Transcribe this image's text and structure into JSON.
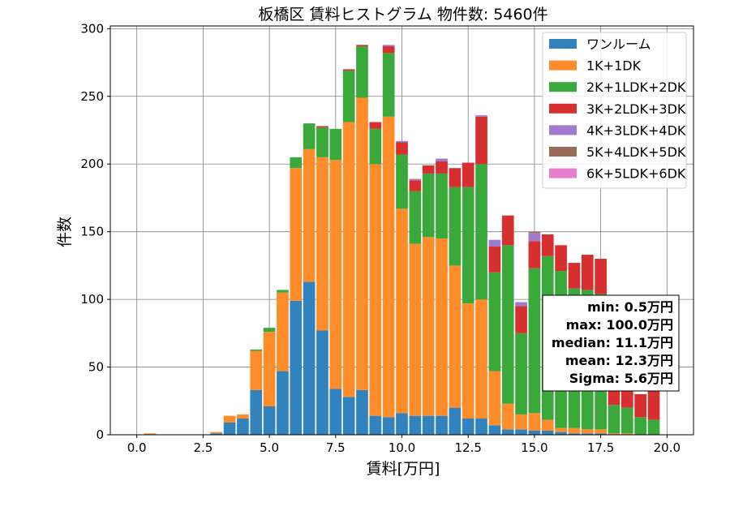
{
  "chart_data": {
    "type": "bar",
    "stacked": true,
    "title": "板橋区 賃料ヒストグラム  物件数: 5460件",
    "xlabel": "賃料[万円]",
    "ylabel": "件数",
    "xlim": [
      -1.0,
      21.0
    ],
    "ylim": [
      0,
      302
    ],
    "xticks": [
      0.0,
      2.5,
      5.0,
      7.5,
      10.0,
      12.5,
      15.0,
      17.5,
      20.0
    ],
    "xtick_labels": [
      "0.0",
      "2.5",
      "5.0",
      "7.5",
      "10.0",
      "12.5",
      "15.0",
      "17.5",
      "20.0"
    ],
    "yticks": [
      0,
      50,
      100,
      150,
      200,
      250,
      300
    ],
    "ytick_labels": [
      "0",
      "50",
      "100",
      "150",
      "200",
      "250",
      "300"
    ],
    "grid": true,
    "legend_position": "top-right",
    "bin_centers": [
      0.5,
      1.0,
      1.5,
      2.0,
      2.5,
      3.0,
      3.5,
      4.0,
      4.5,
      5.0,
      5.5,
      6.0,
      6.5,
      7.0,
      7.5,
      8.0,
      8.5,
      9.0,
      9.5,
      10.0,
      10.5,
      11.0,
      11.5,
      12.0,
      12.5,
      13.0,
      13.5,
      14.0,
      14.5,
      15.0,
      15.5,
      16.0,
      16.5,
      17.0,
      17.5,
      18.0,
      18.5,
      19.0,
      19.5
    ],
    "series": [
      {
        "name": "ワンルーム",
        "color": "#3182bd",
        "values": [
          0,
          0,
          0,
          0,
          0,
          1,
          9,
          12,
          33,
          21,
          47,
          99,
          113,
          77,
          34,
          28,
          33,
          14,
          13,
          16,
          14,
          14,
          14,
          20,
          12,
          12,
          7,
          4,
          4,
          3,
          3,
          2,
          1,
          1,
          1,
          0,
          0,
          0,
          0
        ]
      },
      {
        "name": "1K+1DK",
        "color": "#ff8c2a",
        "values": [
          1,
          0,
          0,
          0,
          0,
          1,
          5,
          3,
          29,
          55,
          58,
          98,
          98,
          128,
          169,
          203,
          216,
          186,
          222,
          151,
          127,
          132,
          131,
          105,
          85,
          88,
          40,
          19,
          11,
          13,
          8,
          3,
          4,
          3,
          3,
          1,
          1,
          0,
          0
        ]
      },
      {
        "name": "2K+1LDK+2DK",
        "color": "#3aa83a",
        "values": [
          0,
          0,
          0,
          0,
          0,
          0,
          0,
          0,
          1,
          3,
          2,
          8,
          19,
          22,
          23,
          38,
          38,
          26,
          47,
          40,
          39,
          47,
          48,
          58,
          86,
          100,
          73,
          117,
          60,
          107,
          121,
          116,
          103,
          103,
          100,
          21,
          19,
          13,
          11
        ]
      },
      {
        "name": "3K+2LDK+3DK",
        "color": "#d62f2f",
        "values": [
          0,
          0,
          0,
          0,
          0,
          0,
          0,
          0,
          0,
          0,
          0,
          0,
          0,
          1,
          0,
          1,
          1,
          5,
          5,
          9,
          8,
          6,
          9,
          14,
          18,
          35,
          19,
          22,
          20,
          20,
          16,
          19,
          19,
          26,
          26,
          32,
          22,
          17,
          22
        ]
      },
      {
        "name": "4K+3LDK+4DK",
        "color": "#a07acc",
        "values": [
          0,
          0,
          0,
          0,
          0,
          0,
          0,
          0,
          0,
          0,
          0,
          0,
          0,
          0,
          0,
          0,
          0,
          0,
          1,
          1,
          1,
          0,
          2,
          0,
          0,
          1,
          5,
          0,
          3,
          6,
          0,
          0,
          0,
          0,
          0,
          0,
          0,
          0,
          0
        ]
      },
      {
        "name": "5K+4LDK+5DK",
        "color": "#9b6a58",
        "values": [
          0,
          0,
          0,
          0,
          0,
          0,
          0,
          0,
          0,
          0,
          0,
          0,
          0,
          0,
          0,
          0,
          0,
          0,
          0,
          0,
          0,
          0,
          0,
          0,
          0,
          0,
          0,
          0,
          0,
          1,
          0,
          0,
          0,
          0,
          0,
          0,
          0,
          0,
          0
        ]
      },
      {
        "name": "6K+5LDK+6DK",
        "color": "#e77fcf",
        "values": [
          0,
          0,
          0,
          0,
          0,
          0,
          0,
          0,
          0,
          0,
          0,
          0,
          0,
          0,
          0,
          0,
          0,
          0,
          0,
          0,
          0,
          0,
          0,
          0,
          0,
          0,
          0,
          0,
          0,
          0,
          0,
          0,
          0,
          0,
          0,
          0,
          0,
          0,
          0
        ]
      }
    ],
    "stats_lines": [
      "min: 0.5万円",
      "max: 100.0万円",
      "median: 11.1万円",
      "mean: 12.3万円",
      "Sigma: 5.6万円"
    ]
  }
}
